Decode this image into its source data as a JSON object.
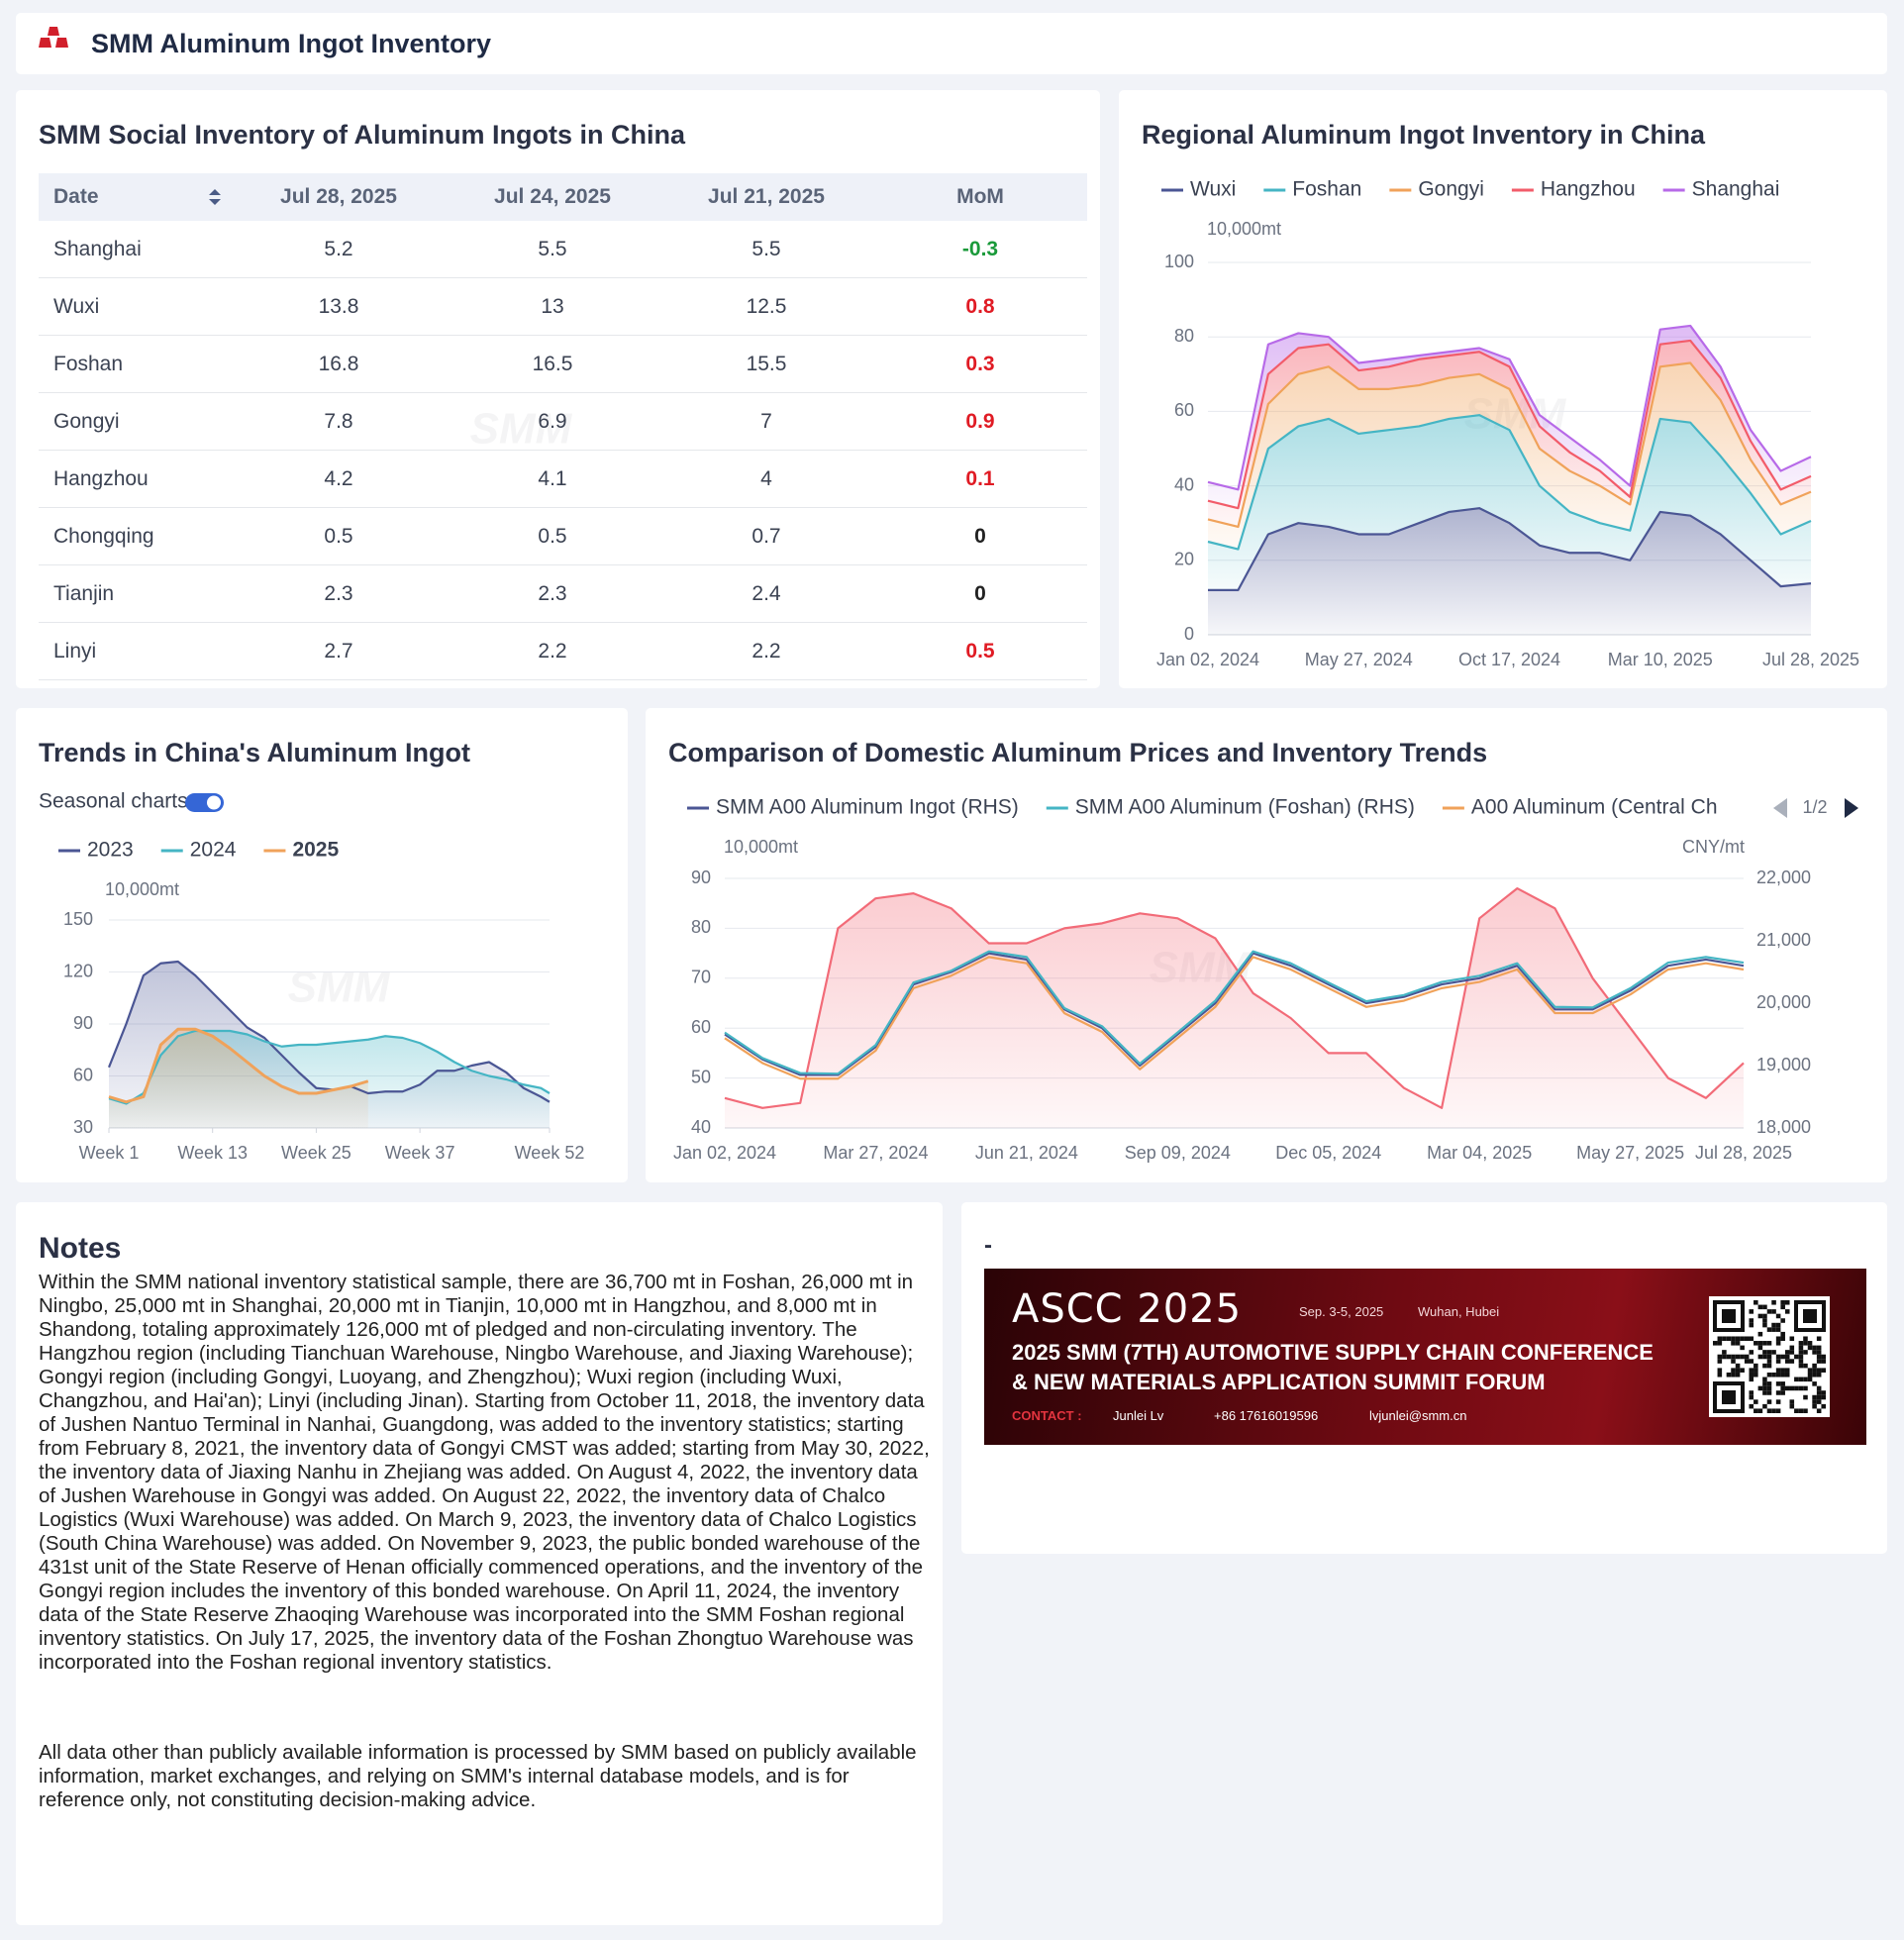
{
  "header": {
    "title": "SMM Aluminum Ingot Inventory"
  },
  "watermark": "SMM",
  "table": {
    "title": "SMM Social Inventory of Aluminum Ingots in China",
    "columns": [
      "Date",
      "Jul 28, 2025",
      "Jul 24, 2025",
      "Jul 21, 2025",
      "MoM"
    ],
    "rows": [
      [
        "Shanghai",
        5.2,
        5.5,
        5.5,
        -0.3
      ],
      [
        "Wuxi",
        13.8,
        13,
        12.5,
        0.8
      ],
      [
        "Foshan",
        16.8,
        16.5,
        15.5,
        0.3
      ],
      [
        "Gongyi",
        7.8,
        6.9,
        7,
        0.9
      ],
      [
        "Hangzhou",
        4.2,
        4.1,
        4,
        0.1
      ],
      [
        "Chongqing",
        0.5,
        0.5,
        0.7,
        0
      ],
      [
        "Tianjin",
        2.3,
        2.3,
        2.4,
        0
      ],
      [
        "Linyi",
        2.7,
        2.2,
        2.2,
        0.5
      ]
    ]
  },
  "chart_data": [
    {
      "type": "area",
      "title": "Regional Aluminum Ingot Inventory in China",
      "stacked": true,
      "grid": true,
      "y_unit": "10,000mt",
      "categories": [
        "Jan 02, 2024",
        null,
        null,
        null,
        null,
        "May 27, 2024",
        null,
        null,
        null,
        null,
        "Oct 17, 2024",
        null,
        null,
        null,
        null,
        "Mar 10, 2025",
        null,
        null,
        null,
        null,
        "Jul 28, 2025"
      ],
      "ylim": [
        0,
        100
      ],
      "yticks": [
        0,
        20,
        40,
        60,
        80,
        100
      ],
      "series": [
        {
          "name": "Wuxi",
          "color": "#4b5694",
          "values": [
            12,
            12,
            27,
            30,
            29,
            27,
            27,
            30,
            33,
            34,
            30,
            24,
            22,
            22,
            20,
            33,
            32,
            27,
            20,
            13,
            13.8
          ]
        },
        {
          "name": "Foshan",
          "color": "#45b5c4",
          "values": [
            13,
            11,
            23,
            26,
            29,
            27,
            28,
            26,
            25,
            25,
            25,
            16,
            11,
            8,
            8,
            25,
            25,
            21,
            18,
            14,
            16.8
          ]
        },
        {
          "name": "Gongyi",
          "color": "#f0a25a",
          "values": [
            6,
            6,
            12,
            14,
            14,
            12,
            11,
            11,
            11,
            11,
            11,
            10,
            11,
            10,
            7,
            14,
            16,
            15,
            9,
            8,
            7.8
          ]
        },
        {
          "name": "Hangzhou",
          "color": "#f25c6a",
          "values": [
            5,
            5,
            8,
            7,
            6,
            5,
            6,
            7,
            6,
            6,
            6,
            6,
            5,
            4,
            2,
            6,
            6,
            6,
            5,
            4,
            4.2
          ]
        },
        {
          "name": "Shanghai",
          "color": "#b76ae8",
          "values": [
            5,
            5,
            8,
            4,
            2,
            2,
            2,
            1,
            1,
            1,
            2,
            3,
            4,
            3,
            3,
            4,
            4,
            3,
            3,
            5,
            5.2
          ]
        }
      ]
    },
    {
      "type": "area",
      "title": "Trends in China's Aluminum Ingot",
      "toggle_label": "Seasonal charts",
      "grid": true,
      "y_unit": "10,000mt",
      "x": [
        1,
        3,
        5,
        7,
        9,
        11,
        13,
        15,
        17,
        19,
        21,
        23,
        25,
        27,
        29,
        31,
        33,
        35,
        37,
        39,
        41,
        43,
        45,
        47,
        49,
        51,
        52
      ],
      "xlim": [
        1,
        52
      ],
      "xticks": [
        {
          "value": 1,
          "label": "Week 1"
        },
        {
          "value": 13,
          "label": "Week 13"
        },
        {
          "value": 25,
          "label": "Week 25"
        },
        {
          "value": 37,
          "label": "Week 37"
        },
        {
          "value": 52,
          "label": "Week 52"
        }
      ],
      "ylim": [
        30,
        150
      ],
      "yticks": [
        30,
        60,
        90,
        120,
        150
      ],
      "series": [
        {
          "name": "2023",
          "color": "#4b5694",
          "values": [
            65,
            90,
            118,
            125,
            126,
            118,
            108,
            98,
            88,
            82,
            72,
            62,
            53,
            52,
            54,
            50,
            51,
            51,
            55,
            63,
            63,
            66,
            68,
            62,
            53,
            48,
            45
          ]
        },
        {
          "name": "2024",
          "color": "#45b5c4",
          "values": [
            47,
            44,
            50,
            72,
            83,
            86,
            86,
            86,
            84,
            80,
            77,
            78,
            78,
            79,
            80,
            81,
            83,
            82,
            79,
            74,
            68,
            63,
            60,
            58,
            55,
            53,
            50
          ]
        },
        {
          "name": "2025",
          "color": "#f0a25a",
          "bold": true,
          "values": [
            48,
            45,
            48,
            78,
            87,
            87,
            83,
            76,
            68,
            60,
            54,
            50,
            50,
            52,
            54,
            57,
            null,
            null,
            null,
            null,
            null,
            null,
            null,
            null,
            null,
            null,
            null
          ]
        }
      ]
    },
    {
      "type": "line",
      "title": "Comparison of Domestic Aluminum Prices and Inventory Trends",
      "legend_page": "1/2",
      "grid": true,
      "y_unit": "10,000mt",
      "y2_unit": "CNY/mt",
      "categories": [
        "Jan 02, 2024",
        null,
        null,
        null,
        "Mar 27, 2024",
        null,
        null,
        null,
        "Jun 21, 2024",
        null,
        null,
        null,
        "Sep 09, 2024",
        null,
        null,
        null,
        "Dec 05, 2024",
        null,
        null,
        null,
        "Mar 04, 2025",
        null,
        null,
        null,
        "May 27, 2025",
        null,
        null,
        "Jul 28, 2025"
      ],
      "ylim": [
        40,
        90
      ],
      "yticks": [
        40,
        50,
        60,
        70,
        80,
        90
      ],
      "y2lim": [
        18000,
        22000
      ],
      "y2ticks": [
        {
          "value": 18000,
          "label": "18,000"
        },
        {
          "value": 19000,
          "label": "19,000"
        },
        {
          "value": 20000,
          "label": "20,000"
        },
        {
          "value": 21000,
          "label": "21,000"
        },
        {
          "value": 22000,
          "label": "22,000"
        }
      ],
      "series": [
        {
          "color": "#f26b78",
          "fill": true,
          "values": [
            46,
            44,
            45,
            80,
            86,
            87,
            84,
            77,
            77,
            80,
            81,
            83,
            82,
            78,
            67,
            62,
            55,
            55,
            48,
            44,
            82,
            88,
            84,
            70,
            60,
            50,
            46,
            53
          ]
        },
        {
          "name": "SMM A00 Aluminum Ingot (RHS)",
          "color": "#4b5694",
          "axis": "y2",
          "values": [
            19500,
            19100,
            18850,
            18850,
            19300,
            20300,
            20500,
            20800,
            20700,
            19900,
            19600,
            19000,
            19500,
            20000,
            20800,
            20600,
            20300,
            20000,
            20100,
            20300,
            20400,
            20600,
            19900,
            19900,
            20200,
            20600,
            20700,
            20600
          ]
        },
        {
          "name": "SMM A00 Aluminum (Foshan) (RHS)",
          "color": "#45b5c4",
          "axis": "y2",
          "values": [
            19530,
            19120,
            18880,
            18870,
            19330,
            20330,
            20520,
            20830,
            20740,
            19920,
            19630,
            19030,
            19530,
            20040,
            20830,
            20640,
            20330,
            20030,
            20130,
            20340,
            20440,
            20640,
            19940,
            19930,
            20240,
            20650,
            20740,
            20650
          ]
        },
        {
          "name": "A00 Aluminum (Central Ch",
          "color": "#f0a25a",
          "axis": "y2",
          "values": [
            19440,
            19040,
            18790,
            18790,
            19240,
            20240,
            20440,
            20740,
            20640,
            19840,
            19540,
            18940,
            19440,
            19940,
            20740,
            20540,
            20240,
            19940,
            20040,
            20240,
            20340,
            20540,
            19840,
            19840,
            20140,
            20540,
            20640,
            20540
          ]
        }
      ]
    }
  ],
  "notes": {
    "title": "Notes",
    "paragraphs": [
      "Within the SMM national inventory statistical sample, there are 36,700 mt in Foshan, 26,000 mt in Ningbo, 25,000 mt in Shanghai, 20,000 mt in Tianjin, 10,000 mt in Hangzhou, and 8,000 mt in Shandong, totaling approximately 126,000 mt of pledged and non-circulating inventory. The Hangzhou region (including Tianchuan Warehouse, Ningbo Warehouse, and Jiaxing Warehouse); Gongyi region (including Gongyi, Luoyang, and Zhengzhou); Wuxi region (including Wuxi, Changzhou, and Hai'an); Linyi (including Jinan). Starting from October 11, 2018, the inventory data of Jushen Nantuo Terminal in Nanhai, Guangdong, was added to the inventory statistics; starting from February 8, 2021, the inventory data of Gongyi CMST was added; starting from May 30, 2022, the inventory data of Jiaxing Nanhu in Zhejiang was added. On August 4, 2022, the inventory data of Jushen Warehouse in Gongyi was added. On August 22, 2022, the inventory data of Chalco Logistics (Wuxi Warehouse) was added. On March 9, 2023, the inventory data of Chalco Logistics (South China Warehouse) was added. On November 9, 2023, the public bonded warehouse of the 431st unit of the State Reserve of Henan officially commenced operations, and the inventory of the Gongyi region includes the inventory of this bonded warehouse. On April 11, 2024, the inventory data of the State Reserve Zhaoqing Warehouse was incorporated into the SMM Foshan regional inventory statistics. On July 17, 2025, the inventory data of the Foshan Zhongtuo Warehouse was incorporated into the Foshan regional inventory statistics.",
      "All data other than publicly available information is processed by SMM based on publicly available information, market exchanges, and relying on SMM's internal database models, and is for reference only, not constituting decision-making advice."
    ]
  },
  "banner": {
    "panel_title": "-",
    "logo": "ASCC 2025",
    "dates": "Sep. 3-5, 2025",
    "location": "Wuhan, Hubei",
    "headline": [
      "2025 SMM (7TH) AUTOMOTIVE SUPPLY CHAIN CONFERENCE",
      "& NEW MATERIALS APPLICATION SUMMIT FORUM"
    ],
    "contact_label": "CONTACT :",
    "contact_name": "Junlei Lv",
    "phone": "+86 17616019596",
    "email": "lvjunlei@smm.cn"
  }
}
